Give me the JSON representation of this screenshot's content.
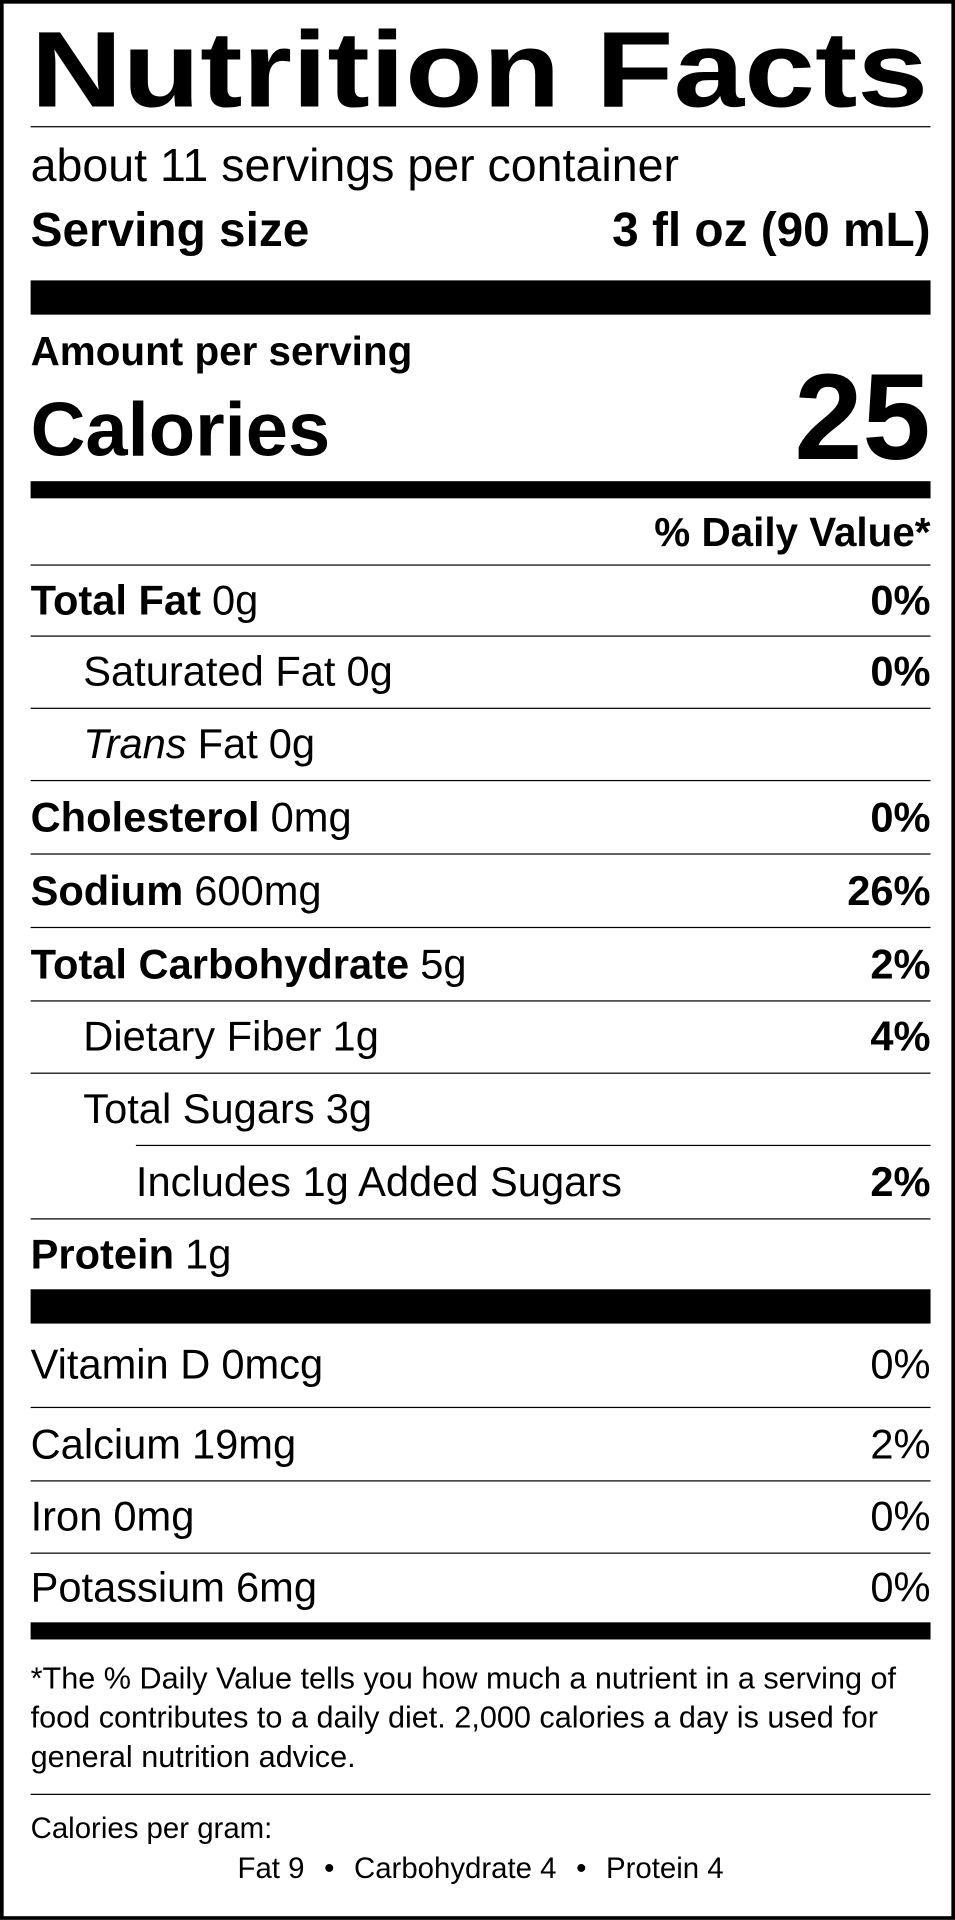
{
  "header": {
    "title": "Nutrition Facts",
    "servings": "about 11 servings per container",
    "serving_size_label": "Serving size",
    "serving_size": "3 fl oz (90 mL)"
  },
  "calories": {
    "amount_per_serving": "Amount per serving",
    "label": "Calories",
    "value": "25"
  },
  "daily_value_header": "% Daily Value*",
  "nutrients": [
    {
      "name": "Total Fat",
      "amount": "0g",
      "dv": "0%"
    },
    {
      "name": "Saturated Fat",
      "amount": "0g",
      "dv": "0%"
    },
    {
      "name_italic": "Trans",
      "name": "Fat",
      "amount": "0g"
    },
    {
      "name": "Cholesterol",
      "amount": "0mg",
      "dv": "0%"
    },
    {
      "name": "Sodium",
      "amount": "600mg",
      "dv": "26%"
    },
    {
      "name": "Total Carbohydrate",
      "amount": "5g",
      "dv": "2%"
    },
    {
      "name": "Dietary Fiber",
      "amount": "1g",
      "dv": "4%"
    },
    {
      "name": "Total Sugars",
      "amount": "3g"
    },
    {
      "text": "Includes 1g Added Sugars",
      "dv": "2%"
    },
    {
      "name": "Protein",
      "amount": "1g"
    }
  ],
  "vitamins": [
    {
      "name": "Vitamin D",
      "amount": "0mcg",
      "dv": "0%"
    },
    {
      "name": "Calcium",
      "amount": "19mg",
      "dv": "2%"
    },
    {
      "name": "Iron",
      "amount": "0mg",
      "dv": "0%"
    },
    {
      "name": "Potassium",
      "amount": "6mg",
      "dv": "0%"
    }
  ],
  "footnote": "*The % Daily Value tells you how much a nutrient in a serving of food contributes to a daily diet. 2,000 calories a day is used for general nutrition advice.",
  "calories_per_gram": {
    "label": "Calories per gram:",
    "items": [
      "Fat 9",
      "Carbohydrate 4",
      "Protein 4"
    ],
    "separator": "•"
  }
}
